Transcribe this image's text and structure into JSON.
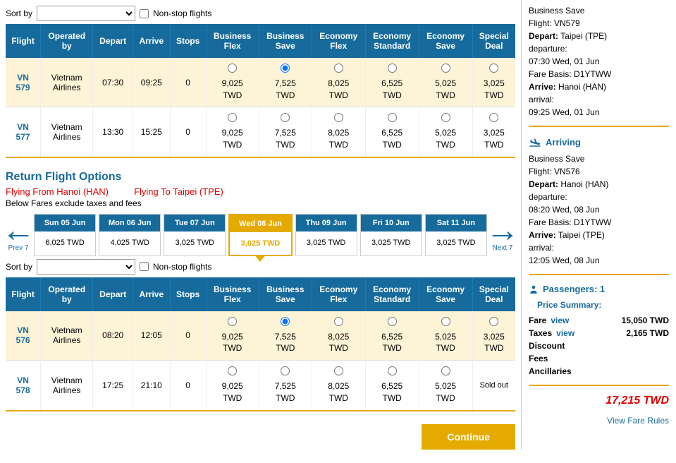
{
  "sort": {
    "label": "Sort by",
    "nonstop": "Non-stop flights"
  },
  "outbound": {
    "headers": [
      "Flight",
      "Operated by",
      "Depart",
      "Arrive",
      "Stops",
      "Business Flex",
      "Business Save",
      "Economy Flex",
      "Economy Standard",
      "Economy Save",
      "Special Deal"
    ],
    "rows": [
      {
        "flight": "VN 579",
        "operator": "Vietnam Airlines",
        "depart": "07:30",
        "arrive": "09:25",
        "stops": "0",
        "fares": [
          "9,025 TWD",
          "7,525 TWD",
          "8,025 TWD",
          "6,525 TWD",
          "5,025 TWD",
          "3,025 TWD"
        ],
        "selected": true,
        "selIdx": 1
      },
      {
        "flight": "VN 577",
        "operator": "Vietnam Airlines",
        "depart": "13:30",
        "arrive": "15:25",
        "stops": "0",
        "fares": [
          "9,025 TWD",
          "7,525 TWD",
          "8,025 TWD",
          "6,525 TWD",
          "5,025 TWD",
          "3,025 TWD"
        ],
        "selected": false,
        "selIdx": -1
      }
    ]
  },
  "return": {
    "title": "Return Flight Options",
    "from_lbl": "Flying From",
    "from_val": "Hanoi (HAN)",
    "to_lbl": "Flying To",
    "to_val": "Taipei (TPE)",
    "note": "Below Fares exclude taxes and fees",
    "prev": "Prev 7",
    "next": "Next 7",
    "dates": [
      {
        "d": "Sun 05 Jun",
        "p": "6,025 TWD"
      },
      {
        "d": "Mon 06 Jun",
        "p": "4,025 TWD"
      },
      {
        "d": "Tue 07 Jun",
        "p": "3,025 TWD"
      },
      {
        "d": "Wed 08 Jun",
        "p": "3,025 TWD",
        "active": true
      },
      {
        "d": "Thu 09 Jun",
        "p": "3,025 TWD"
      },
      {
        "d": "Fri 10 Jun",
        "p": "3,025 TWD"
      },
      {
        "d": "Sat 11 Jun",
        "p": "3,025 TWD"
      }
    ],
    "headers": [
      "Flight",
      "Operated by",
      "Depart",
      "Arrive",
      "Stops",
      "Business Flex",
      "Business Save",
      "Economy Flex",
      "Economy Standard",
      "Economy Save",
      "Special Deal"
    ],
    "rows": [
      {
        "flight": "VN 576",
        "operator": "Vietnam Airlines",
        "depart": "08:20",
        "arrive": "12:05",
        "stops": "0",
        "fares": [
          "9,025 TWD",
          "7,525 TWD",
          "8,025 TWD",
          "6,525 TWD",
          "5,025 TWD",
          "3,025 TWD"
        ],
        "selected": true,
        "selIdx": 1
      },
      {
        "flight": "VN 578",
        "operator": "Vietnam Airlines",
        "depart": "17:25",
        "arrive": "21:10",
        "stops": "0",
        "fares": [
          "9,025 TWD",
          "7,525 TWD",
          "8,025 TWD",
          "6,525 TWD",
          "5,025 TWD",
          "Sold out"
        ],
        "selected": false,
        "selIdx": -1,
        "soldout": 5
      }
    ]
  },
  "continue": "Continue",
  "side": {
    "out": {
      "fare": "Business Save",
      "flight": "Flight: VN579",
      "dep_lbl": "Depart:",
      "dep_val": "Taipei (TPE)",
      "dep_t": "departure:",
      "dep_tv": "07:30 Wed, 01 Jun",
      "fb_lbl": "Fare Basis:",
      "fb_val": "D1YTWW",
      "arr_lbl": "Arrive:",
      "arr_val": "Hanoi (HAN)",
      "arr_t": "arrival:",
      "arr_tv": "09:25 Wed, 01 Jun"
    },
    "arrhead": "Arriving",
    "ret": {
      "fare": "Business Save",
      "flight": "Flight: VN576",
      "dep_lbl": "Depart:",
      "dep_val": "Hanoi (HAN)",
      "dep_t": "departure:",
      "dep_tv": "08:20 Wed, 08 Jun",
      "fb_lbl": "Fare Basis:",
      "fb_val": "D1YTWW",
      "arr_lbl": "Arrive:",
      "arr_val": "Taipei (TPE)",
      "arr_t": "arrival:",
      "arr_tv": "12:05 Wed, 08 Jun"
    },
    "pax": "Passengers: 1",
    "summary": "Price Summary:",
    "fare_lbl": "Fare",
    "fare_view": "view",
    "fare_val": "15,050 TWD",
    "tax_lbl": "Taxes",
    "tax_view": "view",
    "tax_val": "2,165 TWD",
    "discount": "Discount",
    "fees": "Fees",
    "anc": "Ancillaries",
    "total": "17,215 TWD",
    "rules": "View Fare Rules"
  },
  "colors": {
    "brand": "#176b9c",
    "accent": "#e5aa00",
    "danger": "#d00",
    "highlight": "#fdf3d6"
  }
}
